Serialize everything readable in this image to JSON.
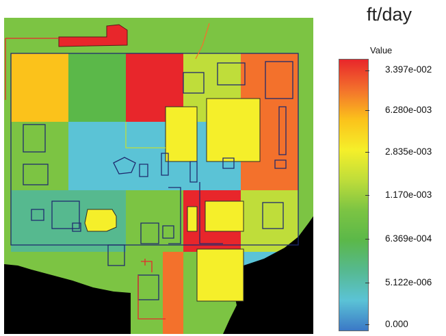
{
  "map": {
    "unit": "ft/day",
    "legend": {
      "title": "Value",
      "labels": [
        "3.397e-002",
        "6.280e-003",
        "2.835e-003",
        "1.170e-003",
        "6.369e-004",
        "5.122e-006",
        "0.000"
      ],
      "colors": {
        "red": "#e8262b",
        "orange": "#f3712c",
        "yellow_orange": "#fbc21b",
        "yellow": "#f5ef2a",
        "yellow_green": "#bfdd3a",
        "green": "#7cc443",
        "mid_green": "#5bb849",
        "teal_green": "#56b98f",
        "cyan": "#5bc3d6",
        "blue": "#3b78c6",
        "no_data": "#000000"
      }
    }
  }
}
